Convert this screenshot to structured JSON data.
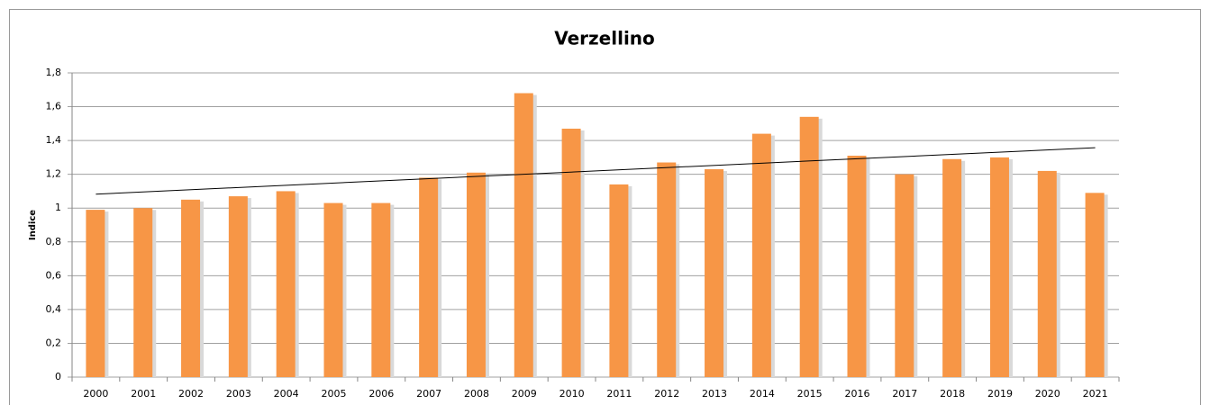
{
  "chart_data": {
    "type": "bar",
    "title": "Verzellino",
    "y_label": "Indice",
    "categories": [
      "2000",
      "2001",
      "2002",
      "2003",
      "2004",
      "2005",
      "2006",
      "2007",
      "2008",
      "2009",
      "2010",
      "2011",
      "2012",
      "2013",
      "2014",
      "2015",
      "2016",
      "2017",
      "2018",
      "2019",
      "2020",
      "2021"
    ],
    "values": [
      0.99,
      1.0,
      1.05,
      1.07,
      1.1,
      1.03,
      1.03,
      1.18,
      1.21,
      1.68,
      1.47,
      1.14,
      1.27,
      1.23,
      1.44,
      1.54,
      1.31,
      1.2,
      1.29,
      1.3,
      1.22,
      1.09
    ],
    "color": "#f79646",
    "ylim": [
      0,
      1.8
    ],
    "yticks": [
      0,
      {
        "value": 0.2,
        "label": "0,2"
      },
      {
        "value": 0.4,
        "label": "0,4"
      },
      {
        "value": 0.6,
        "label": "0,6"
      },
      {
        "value": 0.8,
        "label": "0,8"
      },
      1,
      {
        "value": 1.2,
        "label": "1,2"
      },
      {
        "value": 1.4,
        "label": "1,4"
      },
      {
        "value": 1.6,
        "label": "1,6"
      },
      {
        "value": 1.8,
        "label": "1,8"
      }
    ],
    "grid": true,
    "trendline": "linear"
  }
}
